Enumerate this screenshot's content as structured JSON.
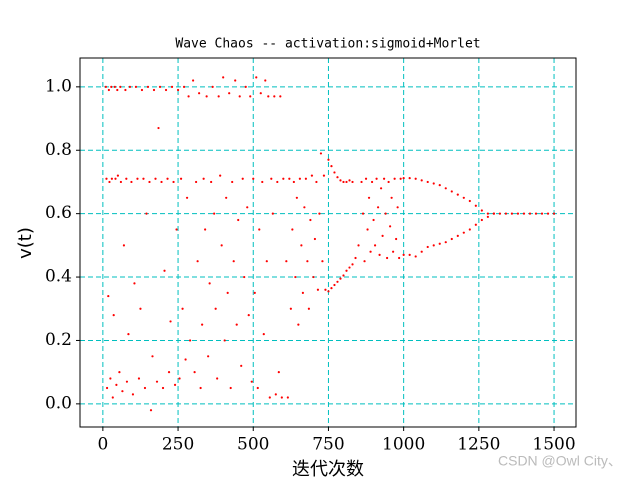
{
  "chart_data": {
    "type": "scatter",
    "title": "Wave Chaos -- activation:sigmoid+Morlet",
    "xlabel": "迭代次数",
    "ylabel": "v(t)",
    "watermark": "CSDN @Owl City、",
    "color": "#ff0000",
    "grid": true,
    "grid_color": "#00bfbf",
    "xlim": [
      -76,
      1573
    ],
    "ylim": [
      -0.073,
      1.091
    ],
    "xticks": [
      0,
      250,
      500,
      750,
      1000,
      1250,
      1500
    ],
    "yticks": [
      {
        "value": 0,
        "label": "0.0"
      },
      0.2,
      0.4,
      0.6,
      0.8,
      {
        "value": 1,
        "label": "1.0"
      }
    ],
    "x": [
      10,
      12,
      14,
      18,
      20,
      22,
      25,
      28,
      30,
      33,
      36,
      40,
      42,
      45,
      48,
      50,
      55,
      58,
      60,
      65,
      70,
      75,
      78,
      80,
      85,
      90,
      95,
      100,
      105,
      110,
      115,
      120,
      125,
      130,
      135,
      140,
      145,
      150,
      155,
      160,
      165,
      170,
      175,
      180,
      185,
      190,
      195,
      200,
      205,
      210,
      215,
      220,
      225,
      230,
      235,
      240,
      245,
      250,
      255,
      260,
      265,
      270,
      275,
      280,
      285,
      290,
      300,
      305,
      310,
      315,
      320,
      325,
      330,
      335,
      340,
      345,
      350,
      355,
      360,
      365,
      370,
      375,
      380,
      385,
      390,
      395,
      400,
      405,
      410,
      415,
      420,
      425,
      430,
      435,
      440,
      445,
      450,
      455,
      460,
      465,
      470,
      475,
      480,
      485,
      490,
      495,
      500,
      505,
      510,
      515,
      520,
      525,
      530,
      535,
      540,
      545,
      550,
      555,
      560,
      565,
      570,
      575,
      580,
      585,
      590,
      595,
      600,
      610,
      615,
      620,
      625,
      630,
      635,
      640,
      645,
      650,
      655,
      660,
      665,
      670,
      675,
      680,
      685,
      690,
      695,
      700,
      705,
      710,
      715,
      720,
      725,
      730,
      735,
      740,
      750,
      760,
      770,
      780,
      790,
      800,
      810,
      820,
      830,
      750,
      760,
      770,
      780,
      790,
      800,
      810,
      820,
      830,
      840,
      850,
      860,
      865,
      870,
      875,
      880,
      885,
      890,
      895,
      900,
      905,
      910,
      915,
      920,
      925,
      930,
      935,
      940,
      945,
      950,
      955,
      960,
      965,
      970,
      975,
      980,
      985,
      990,
      1000,
      1020,
      1040,
      1060,
      1080,
      1100,
      1120,
      1140,
      1160,
      1180,
      1200,
      1220,
      1240,
      1260,
      1280,
      1300,
      1000,
      1020,
      1040,
      1060,
      1080,
      1100,
      1120,
      1140,
      1160,
      1180,
      1200,
      1220,
      1240,
      1260,
      1280,
      1300,
      1320,
      1340,
      1360,
      1380,
      1400,
      1420,
      1440,
      1460,
      1480,
      1500
    ],
    "values": [
      1.0,
      0.71,
      0.05,
      0.34,
      0.99,
      0.7,
      0.08,
      1.0,
      0.71,
      0.02,
      0.28,
      1.0,
      0.71,
      0.06,
      0.99,
      0.72,
      0.1,
      1.0,
      0.7,
      0.04,
      0.5,
      0.99,
      0.71,
      0.07,
      0.22,
      1.0,
      0.7,
      0.03,
      0.38,
      1.0,
      0.71,
      0.08,
      0.3,
      0.99,
      0.71,
      0.05,
      0.6,
      1.0,
      0.7,
      -0.02,
      0.15,
      0.99,
      0.71,
      0.07,
      0.87,
      1.0,
      0.7,
      0.05,
      0.42,
      0.99,
      0.71,
      0.1,
      0.26,
      1.0,
      0.7,
      0.06,
      0.55,
      0.99,
      0.08,
      0.71,
      0.3,
      1.0,
      0.14,
      0.65,
      0.97,
      0.2,
      1.02,
      0.1,
      0.7,
      0.45,
      0.98,
      0.05,
      0.25,
      0.71,
      0.55,
      0.97,
      0.15,
      0.38,
      0.7,
      1.0,
      0.6,
      0.3,
      0.08,
      0.97,
      0.72,
      0.5,
      1.03,
      0.2,
      0.65,
      0.35,
      0.98,
      0.05,
      0.7,
      0.45,
      1.02,
      0.25,
      0.58,
      0.97,
      0.12,
      0.71,
      0.4,
      1.0,
      0.62,
      0.28,
      0.97,
      0.07,
      0.71,
      0.35,
      1.03,
      0.05,
      0.55,
      0.98,
      0.7,
      0.22,
      1.02,
      0.45,
      0.97,
      0.02,
      0.71,
      0.6,
      0.97,
      0.03,
      0.7,
      0.1,
      0.97,
      0.02,
      0.71,
      0.45,
      0.02,
      0.71,
      0.3,
      0.55,
      0.7,
      0.4,
      0.65,
      0.25,
      0.71,
      0.5,
      0.35,
      0.62,
      0.71,
      0.45,
      0.3,
      0.58,
      0.72,
      0.4,
      0.52,
      0.7,
      0.36,
      0.6,
      0.79,
      0.45,
      0.72,
      0.36,
      0.77,
      0.75,
      0.73,
      0.715,
      0.705,
      0.7,
      0.7,
      0.705,
      0.7,
      0.355,
      0.365,
      0.375,
      0.385,
      0.395,
      0.405,
      0.42,
      0.43,
      0.44,
      0.46,
      0.5,
      0.7,
      0.6,
      0.45,
      0.71,
      0.55,
      0.65,
      0.48,
      0.7,
      0.58,
      0.5,
      0.71,
      0.62,
      0.47,
      0.68,
      0.53,
      0.71,
      0.6,
      0.46,
      0.7,
      0.56,
      0.65,
      0.48,
      0.71,
      0.52,
      0.62,
      0.46,
      0.71,
      0.712,
      0.712,
      0.71,
      0.705,
      0.7,
      0.695,
      0.69,
      0.68,
      0.67,
      0.66,
      0.65,
      0.64,
      0.625,
      0.61,
      0.6,
      0.6,
      0.47,
      0.47,
      0.465,
      0.48,
      0.495,
      0.5,
      0.505,
      0.51,
      0.52,
      0.53,
      0.54,
      0.55,
      0.565,
      0.58,
      0.59,
      0.6,
      0.6,
      0.6,
      0.6,
      0.6,
      0.6,
      0.6,
      0.6,
      0.6,
      0.6,
      0.6
    ]
  }
}
